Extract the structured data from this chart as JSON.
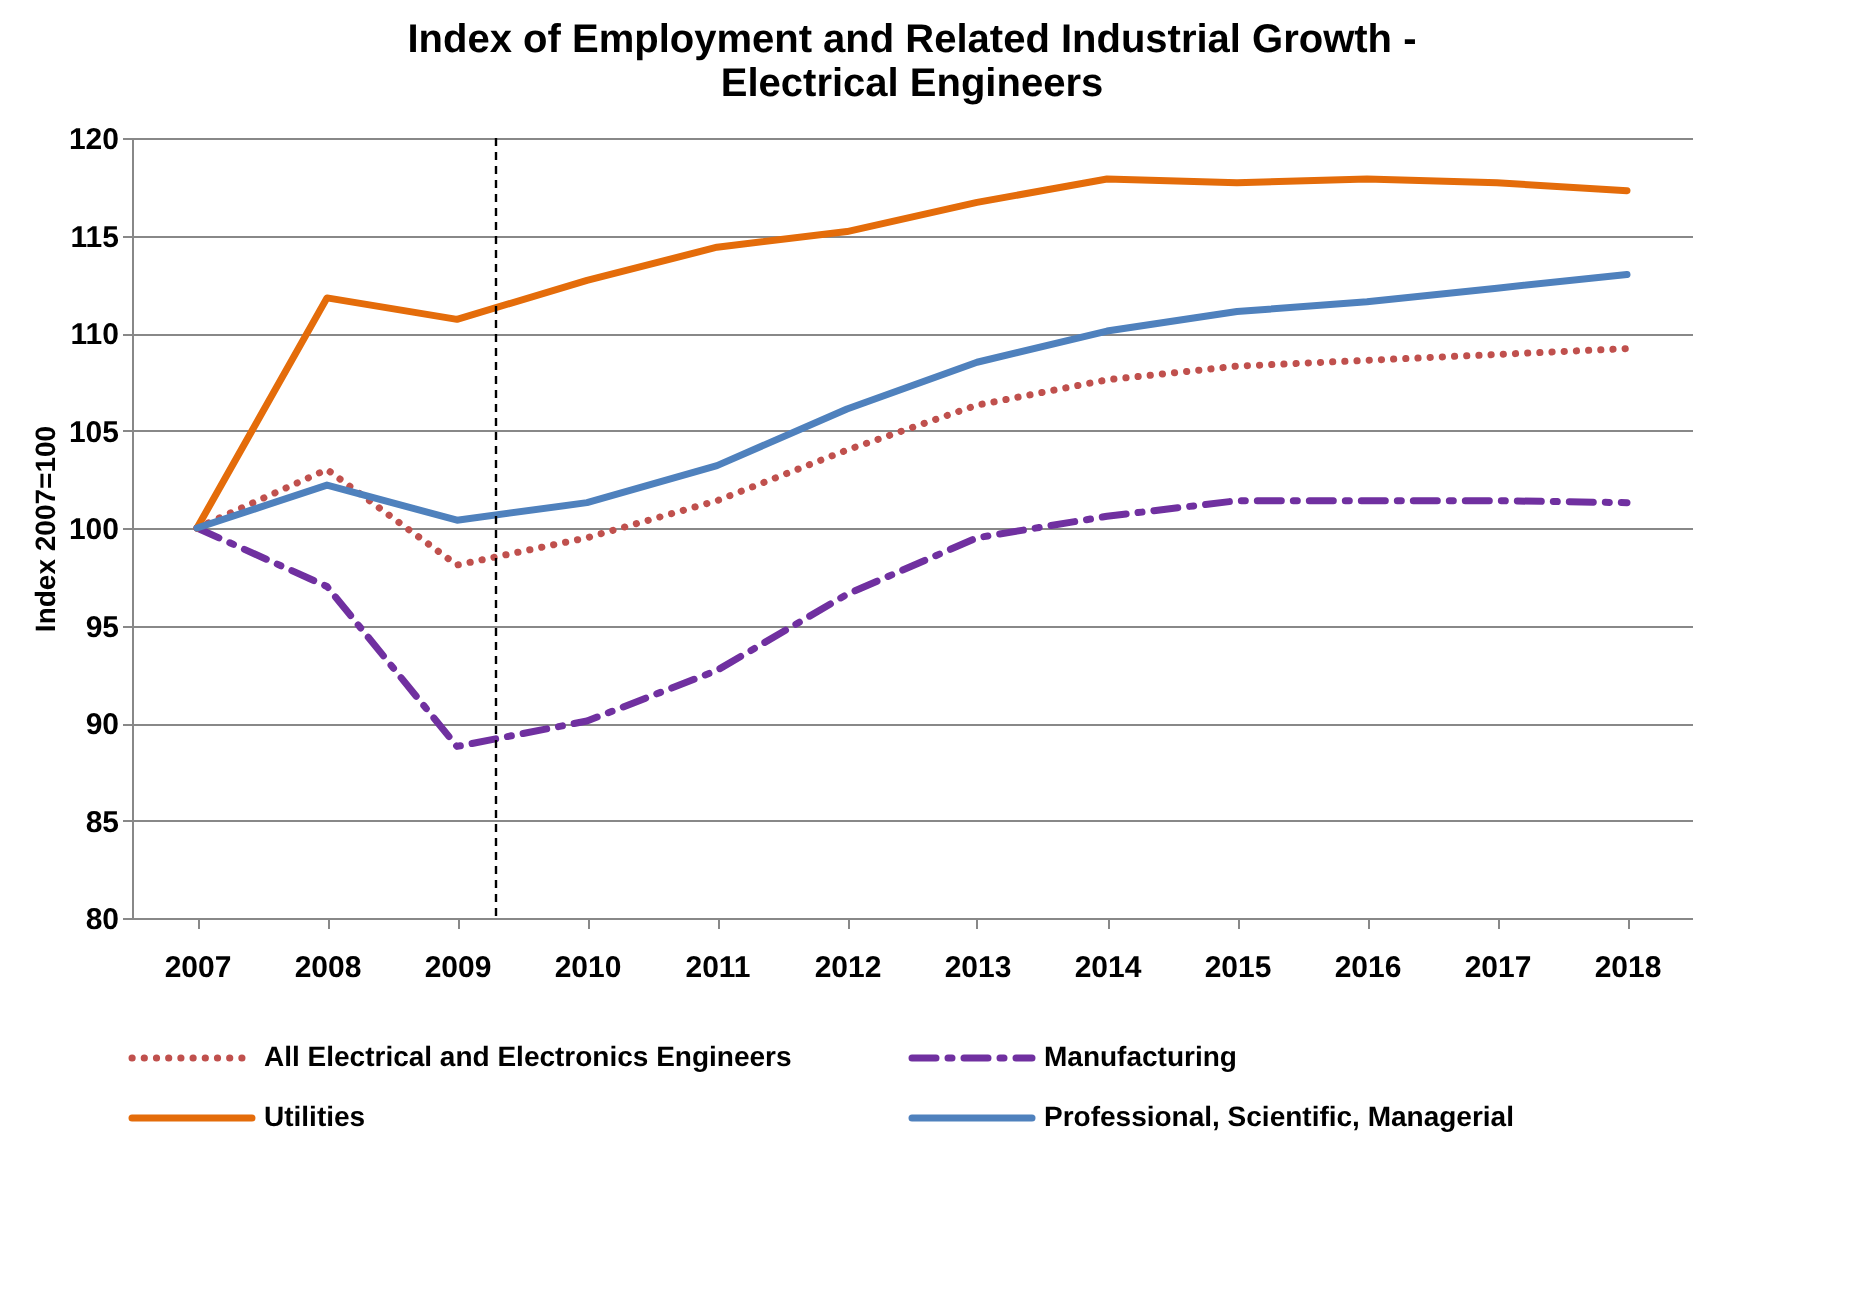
{
  "chart_data": {
    "type": "line",
    "title": [
      "Index of Employment and Related Industrial Growth -",
      "Electrical Engineers"
    ],
    "ylabel": "Index 2007=100",
    "x": [
      2007,
      2008,
      2009,
      2010,
      2011,
      2012,
      2013,
      2014,
      2015,
      2016,
      2017,
      2018
    ],
    "xlim": [
      2006.5,
      2018.5
    ],
    "xticks": [
      2007,
      2008,
      2009,
      2010,
      2011,
      2012,
      2013,
      2014,
      2015,
      2016,
      2017,
      2018
    ],
    "ylim": [
      80,
      120
    ],
    "yticks": [
      80,
      85,
      90,
      95,
      100,
      105,
      110,
      115,
      120
    ],
    "grid": "y",
    "legend": "bottom",
    "marker": "none",
    "series": [
      {
        "name": "All Electrical and Electronics Engineers",
        "color": "#c0504d",
        "line_style": "dotted",
        "values": [
          100,
          103.0,
          98.1,
          99.5,
          101.4,
          104.0,
          106.3,
          107.6,
          108.3,
          108.6,
          108.9,
          109.2
        ]
      },
      {
        "name": "Manufacturing",
        "color": "#7030a0",
        "line_style": "dashed",
        "values": [
          100,
          97.0,
          88.8,
          90.1,
          92.7,
          96.6,
          99.5,
          100.6,
          101.4,
          101.4,
          101.4,
          101.3
        ]
      },
      {
        "name": "Utilities",
        "color": "#e46c0a",
        "line_style": "solid",
        "values": [
          100,
          111.8,
          110.7,
          112.7,
          114.4,
          115.2,
          116.7,
          117.9,
          117.7,
          117.9,
          117.7,
          117.3
        ]
      },
      {
        "name": "Professional, Scientific, Managerial",
        "color": "#4f81bd",
        "line_style": "solid",
        "values": [
          100,
          102.2,
          100.4,
          101.3,
          103.2,
          106.1,
          108.5,
          110.1,
          111.1,
          111.6,
          112.3,
          113.0
        ]
      }
    ],
    "ref_lines": [
      {
        "axis": "x",
        "value": 2009.3,
        "color": "#000000",
        "line_style": "dashed"
      }
    ]
  }
}
